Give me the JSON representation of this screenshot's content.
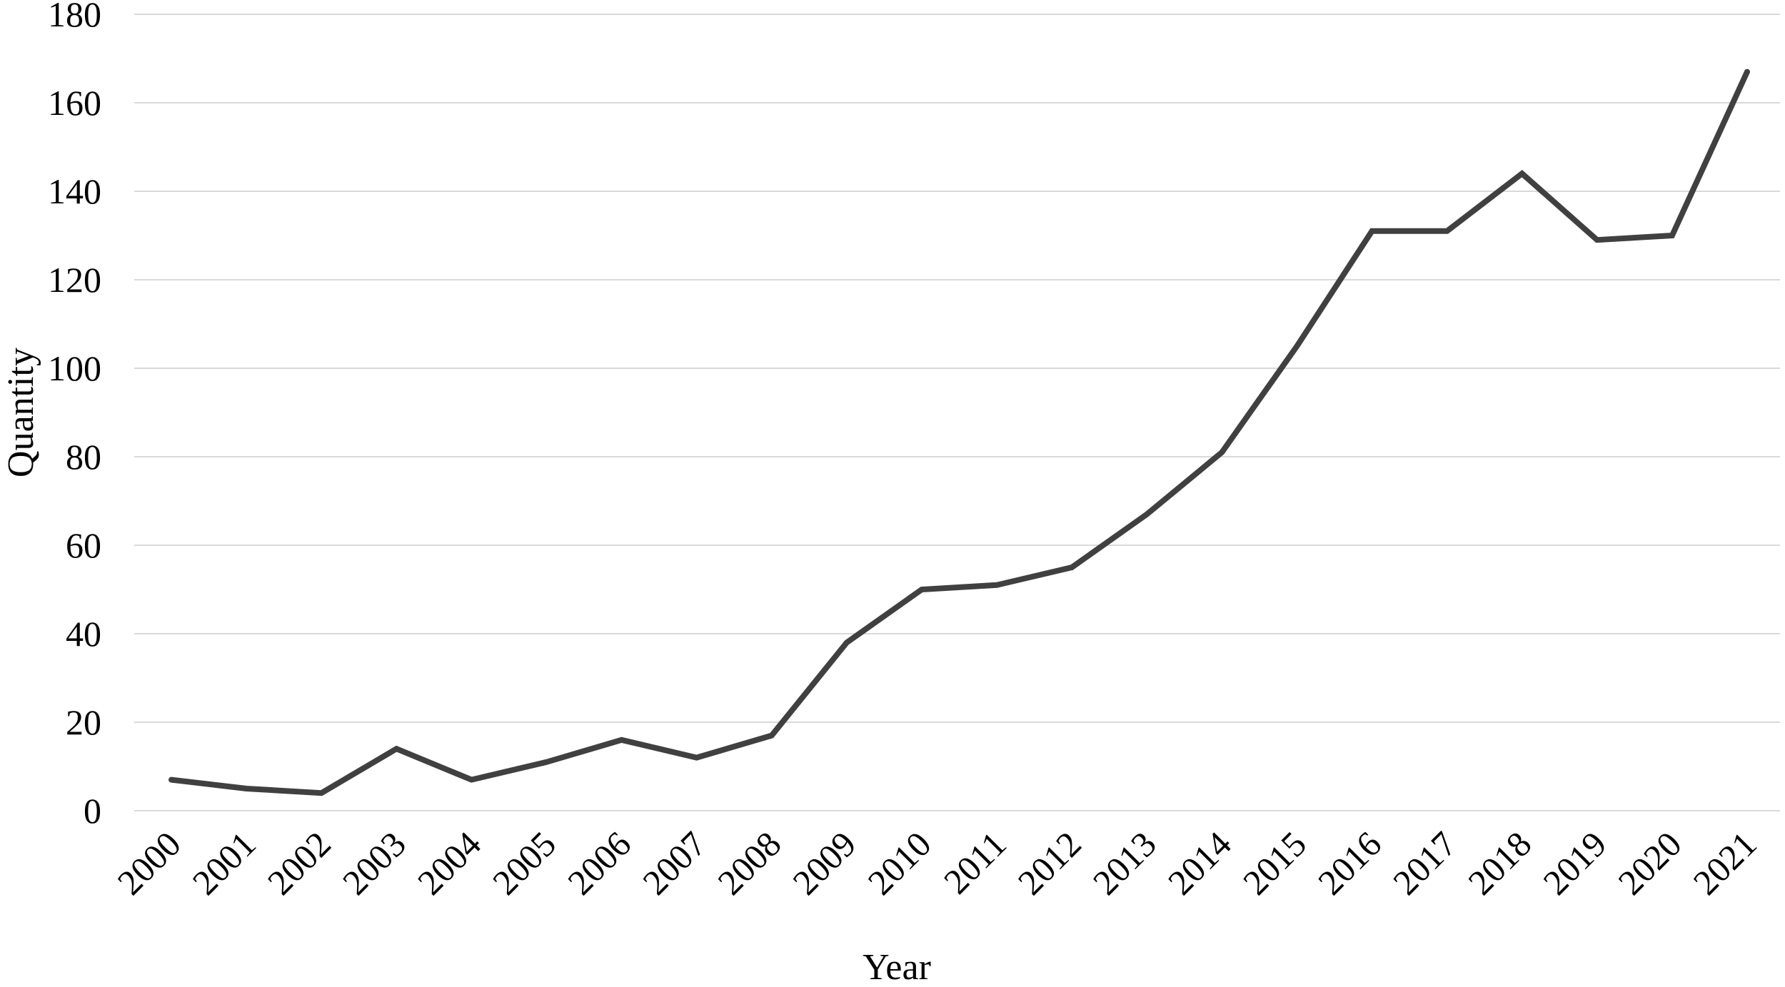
{
  "page": {
    "background_color": "#ffffff"
  },
  "chart_data": {
    "type": "line",
    "title": "",
    "xlabel": "Year",
    "ylabel": "Quantity",
    "categories": [
      "2000",
      "2001",
      "2002",
      "2003",
      "2004",
      "2005",
      "2006",
      "2007",
      "2008",
      "2009",
      "2010",
      "2011",
      "2012",
      "2013",
      "2014",
      "2015",
      "2016",
      "2017",
      "2018",
      "2019",
      "2020",
      "2021"
    ],
    "values": [
      7,
      5,
      4,
      14,
      7,
      11,
      16,
      12,
      17,
      38,
      50,
      51,
      55,
      67,
      81,
      105,
      131,
      131,
      144,
      129,
      130,
      167
    ],
    "ylim": [
      0,
      180
    ],
    "ytick_step": 20,
    "ytick_labels": [
      "0",
      "20",
      "40",
      "60",
      "80",
      "100",
      "120",
      "140",
      "160",
      "180"
    ],
    "grid": "horizontal",
    "legend_position": "none",
    "x_label_rotation_deg": 45,
    "line_color": "#404040",
    "gridline_color": "#d9d9d9",
    "text_color": "#000000"
  }
}
